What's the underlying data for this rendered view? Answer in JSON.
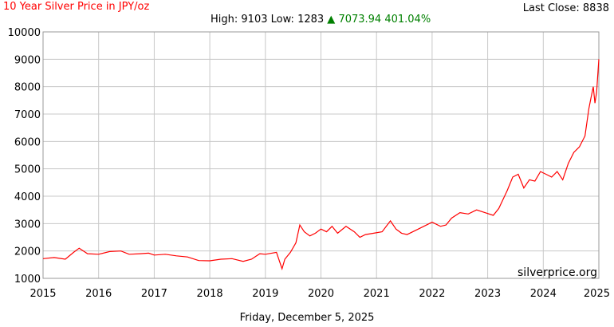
{
  "header": {
    "title": "10 Year Silver Price in JPY/oz",
    "last_close_label": "Last Close:",
    "last_close_value": "8838",
    "high_label": "High:",
    "high_value": "9103",
    "low_label": "Low:",
    "low_value": "1283",
    "up_arrow": "▲",
    "change_value": "7073.94",
    "change_percent": "401.04%"
  },
  "watermark": "silverprice.org",
  "date_label": "Friday, December 5, 2025",
  "colors": {
    "line": "#ff0000",
    "grid": "#c8c8c8",
    "up": "#008000"
  },
  "chart_data": {
    "type": "line",
    "title": "10 Year Silver Price in JPY/oz",
    "xlabel": "",
    "ylabel": "",
    "xlim": [
      2015,
      2025
    ],
    "ylim": [
      1000,
      10000
    ],
    "x_ticks": [
      "2015",
      "2016",
      "2017",
      "2018",
      "2019",
      "2020",
      "2021",
      "2022",
      "2023",
      "2024",
      "2025"
    ],
    "y_ticks": [
      "1000",
      "2000",
      "3000",
      "4000",
      "5000",
      "6000",
      "7000",
      "8000",
      "9000",
      "10000"
    ],
    "grid": true,
    "series": [
      {
        "x": [
          2015.0,
          2015.2,
          2015.4,
          2015.55,
          2015.65,
          2015.8,
          2016.0,
          2016.2,
          2016.4,
          2016.55,
          2016.75,
          2016.9,
          2017.0,
          2017.2,
          2017.4,
          2017.6,
          2017.8,
          2018.0,
          2018.2,
          2018.4,
          2018.6,
          2018.75,
          2018.9,
          2019.0,
          2019.2,
          2019.3,
          2019.35,
          2019.45,
          2019.55,
          2019.62,
          2019.7,
          2019.8,
          2019.9,
          2020.0,
          2020.1,
          2020.2,
          2020.3,
          2020.45,
          2020.6,
          2020.7,
          2020.8,
          2020.95,
          2021.1,
          2021.25,
          2021.35,
          2021.45,
          2021.55,
          2021.7,
          2021.85,
          2022.0,
          2022.15,
          2022.25,
          2022.35,
          2022.5,
          2022.65,
          2022.8,
          2022.95,
          2023.1,
          2023.2,
          2023.35,
          2023.45,
          2023.55,
          2023.65,
          2023.75,
          2023.85,
          2023.95,
          2024.05,
          2024.15,
          2024.25,
          2024.35,
          2024.45,
          2024.55,
          2024.65,
          2024.75,
          2024.82,
          2024.86,
          2024.9,
          2024.93,
          2024.96,
          2025.0
        ],
        "values": [
          1720,
          1760,
          1700,
          1950,
          2100,
          1900,
          1880,
          1980,
          2000,
          1880,
          1900,
          1920,
          1850,
          1880,
          1820,
          1780,
          1650,
          1640,
          1700,
          1720,
          1620,
          1700,
          1900,
          1880,
          1950,
          1350,
          1700,
          1950,
          2300,
          2950,
          2700,
          2550,
          2650,
          2800,
          2700,
          2900,
          2650,
          2900,
          2700,
          2500,
          2600,
          2650,
          2700,
          3100,
          2800,
          2650,
          2600,
          2750,
          2900,
          3050,
          2900,
          2950,
          3200,
          3400,
          3350,
          3500,
          3400,
          3300,
          3550,
          4200,
          4700,
          4800,
          4300,
          4600,
          4550,
          4900,
          4800,
          4700,
          4900,
          4600,
          5200,
          5600,
          5800,
          6200,
          7200,
          7600,
          8000,
          7400,
          7800,
          9000
        ]
      }
    ]
  }
}
